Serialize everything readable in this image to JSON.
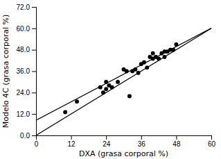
{
  "chart_data": {
    "type": "scatter",
    "xlabel": "DXA (grasa corporal %)",
    "ylabel": "Modelo 4C (grasa corporal %)",
    "xlim": [
      0,
      60
    ],
    "ylim": [
      0,
      72
    ],
    "xticks": [
      0,
      12,
      24,
      36,
      48,
      60
    ],
    "yticks": [
      {
        "value": 0,
        "label": "0.0"
      },
      {
        "value": 12,
        "label": "12.0"
      },
      {
        "value": 24,
        "label": "24.0"
      },
      {
        "value": 36,
        "label": "36.0"
      },
      {
        "value": 48,
        "label": "48.0"
      },
      {
        "value": 60,
        "label": "60.0"
      },
      {
        "value": 72,
        "label": "72.0"
      }
    ],
    "series": [
      {
        "type": "scatter",
        "color": "black",
        "marker": "circle",
        "x": [
          10,
          14,
          22,
          23,
          24,
          24,
          25,
          26,
          28,
          30,
          31,
          32,
          33,
          34,
          35,
          36,
          37,
          38,
          39,
          40,
          40,
          41,
          42,
          43,
          44,
          44,
          45,
          46,
          47,
          48
        ],
        "values": [
          13,
          19,
          27,
          24,
          26,
          30,
          28,
          27,
          30,
          37,
          36,
          22,
          36,
          37,
          35,
          40,
          41,
          38,
          44,
          43,
          46,
          44,
          43,
          46,
          44,
          47,
          47,
          48,
          48,
          51
        ]
      },
      {
        "type": "line",
        "color": "black",
        "line_style": "solid",
        "x": [
          0,
          60
        ],
        "values": [
          0,
          60
        ]
      },
      {
        "type": "line",
        "color": "black",
        "line_style": "solid",
        "x": [
          0,
          60
        ],
        "values": [
          8.5,
          60.1
        ]
      }
    ]
  }
}
